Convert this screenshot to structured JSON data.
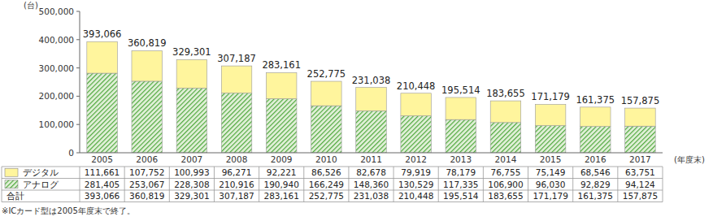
{
  "chart_data": {
    "type": "bar",
    "stacked": true,
    "grid": false,
    "y_label": "(台)",
    "x_label": "(年度末)",
    "annotations": [
      "※ICカード型は2005年度末で終了。"
    ],
    "categories": [
      "2005",
      "2006",
      "2007",
      "2008",
      "2009",
      "2010",
      "2011",
      "2012",
      "2013",
      "2014",
      "2015",
      "2016",
      "2017"
    ],
    "ylim": [
      0,
      500000
    ],
    "yticks": [
      0,
      {
        "value": 100000,
        "label": "100,000"
      },
      {
        "value": 200000,
        "label": "200,000"
      },
      {
        "value": 300000,
        "label": "300,000"
      },
      {
        "value": 400000,
        "label": "400,000"
      },
      {
        "value": 500000,
        "label": "500,000"
      }
    ],
    "series": [
      {
        "name": "デジタル",
        "color": "#fff59d",
        "values": [
          111661,
          107752,
          100993,
          96271,
          92221,
          86526,
          82678,
          79919,
          78179,
          76755,
          75149,
          68546,
          63751
        ],
        "value_labels": [
          "111,661",
          "107,752",
          "100,993",
          "96,271",
          "92,221",
          "86,526",
          "82,678",
          "79,919",
          "78,179",
          "76,755",
          "75,149",
          "68,546",
          "63,751"
        ]
      },
      {
        "name": "アナログ",
        "color": "#4fa83d",
        "values": [
          281405,
          253067,
          228308,
          210916,
          190940,
          166249,
          148360,
          130529,
          117335,
          106900,
          96030,
          92829,
          94124
        ],
        "value_labels": [
          "281,405",
          "253,067",
          "228,308",
          "210,916",
          "190,940",
          "166,249",
          "148,360",
          "130,529",
          "117,335",
          "106,900",
          "96,030",
          "92,829",
          "94,124"
        ]
      }
    ],
    "totals": {
      "label": "合計",
      "values": [
        393066,
        360819,
        329301,
        307187,
        283161,
        252775,
        231038,
        210448,
        195514,
        183655,
        171179,
        161375,
        157875
      ],
      "value_labels": [
        "393,066",
        "360,819",
        "329,301",
        "307,187",
        "283,161",
        "252,775",
        "231,038",
        "210,448",
        "195,514",
        "183,655",
        "171,179",
        "161,375",
        "157,875"
      ]
    }
  }
}
